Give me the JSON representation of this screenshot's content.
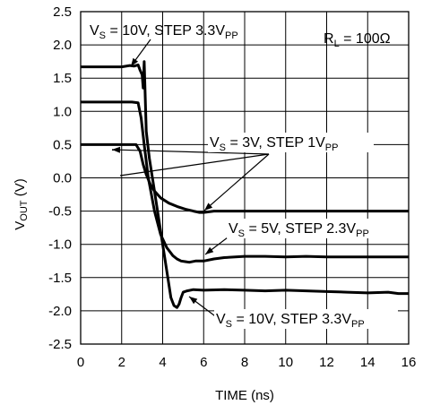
{
  "chart_data": {
    "type": "line",
    "xlabel": "TIME (ns)",
    "ylabel_main": "V",
    "ylabel_sub": "OUT",
    "ylabel_unit": " (V)",
    "xlim": [
      0,
      16
    ],
    "ylim": [
      -2.5,
      2.5
    ],
    "xticks": [
      "0",
      "2",
      "4",
      "6",
      "8",
      "10",
      "12",
      "14",
      "16"
    ],
    "yticks": [
      "2.5",
      "2.0",
      "1.5",
      "1.0",
      "0.5",
      "0.0",
      "-0.5",
      "-1.0",
      "-1.5",
      "-2.0",
      "-2.5"
    ],
    "grid": true,
    "annotations": {
      "load": {
        "main": "R",
        "sub": "L",
        "rest": " = 100Ω"
      },
      "top": {
        "main": "V",
        "sub": "S",
        "mid": " = 10V, STEP 3.3V",
        "sub2": "PP"
      },
      "mid": {
        "main": "V",
        "sub": "S",
        "mid": " = 3V, STEP 1V",
        "sub2": "PP"
      },
      "low": {
        "main": "V",
        "sub": "S",
        "mid": " = 5V, STEP 2.3V",
        "sub2": "PP"
      },
      "bottom": {
        "main": "V",
        "sub": "S",
        "mid": " = 10V, STEP 3.3V",
        "sub2": "PP"
      }
    },
    "series": [
      {
        "x": [
          0,
          1,
          2,
          2.4,
          2.6,
          2.8,
          2.9,
          3.0,
          3.05,
          3.1,
          3.15,
          3.2,
          3.35,
          3.6,
          3.9,
          4.2,
          4.4,
          4.55,
          4.7,
          4.8,
          4.9,
          5.0,
          5.2,
          5.5,
          6,
          7,
          8,
          9,
          10,
          11,
          12,
          13,
          14,
          15,
          15.5,
          16
        ],
        "y": [
          1.67,
          1.67,
          1.67,
          1.69,
          1.68,
          1.7,
          1.62,
          1.55,
          1.35,
          1.75,
          1.2,
          0.7,
          0.3,
          -0.2,
          -0.8,
          -1.4,
          -1.8,
          -1.92,
          -1.95,
          -1.9,
          -1.8,
          -1.72,
          -1.7,
          -1.68,
          -1.69,
          -1.68,
          -1.69,
          -1.7,
          -1.69,
          -1.7,
          -1.71,
          -1.72,
          -1.73,
          -1.72,
          -1.74,
          -1.74
        ]
      },
      {
        "x": [
          0,
          1,
          2,
          2.5,
          2.8,
          2.95,
          3.1,
          3.3,
          3.6,
          3.9,
          4.2,
          4.5,
          4.7,
          4.9,
          5.1,
          5.3,
          5.6,
          6,
          6.5,
          7,
          8,
          9,
          10,
          11,
          12,
          13,
          14,
          15,
          16
        ],
        "y": [
          1.14,
          1.14,
          1.14,
          1.14,
          1.13,
          0.9,
          0.5,
          0.0,
          -0.5,
          -0.85,
          -1.05,
          -1.17,
          -1.22,
          -1.25,
          -1.26,
          -1.27,
          -1.25,
          -1.25,
          -1.22,
          -1.2,
          -1.18,
          -1.18,
          -1.19,
          -1.18,
          -1.19,
          -1.19,
          -1.19,
          -1.19,
          -1.19
        ]
      },
      {
        "x": [
          0,
          1,
          2,
          2.4,
          2.7,
          2.9,
          3.05,
          3.2,
          3.4,
          3.6,
          3.9,
          4.3,
          4.7,
          5.1,
          5.5,
          5.8,
          6,
          6.5,
          7,
          8,
          9,
          10,
          11,
          12,
          13,
          14,
          15,
          16
        ],
        "y": [
          0.5,
          0.5,
          0.5,
          0.5,
          0.5,
          0.4,
          0.2,
          0.05,
          -0.1,
          -0.2,
          -0.3,
          -0.38,
          -0.43,
          -0.47,
          -0.5,
          -0.52,
          -0.52,
          -0.5,
          -0.5,
          -0.5,
          -0.5,
          -0.5,
          -0.5,
          -0.5,
          -0.5,
          -0.5,
          -0.5,
          -0.5
        ]
      }
    ]
  }
}
